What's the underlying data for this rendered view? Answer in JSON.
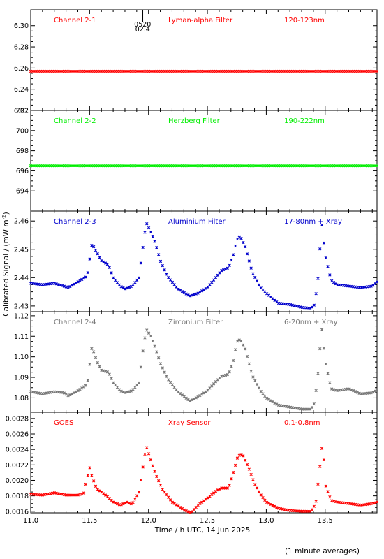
{
  "chart_data": [
    {
      "type": "scatter",
      "panel_labels": [
        "Channel 2-1",
        "Lyman-alpha Filter",
        "120-123nm"
      ],
      "color": "#ff0000",
      "ylim": [
        6.22,
        6.315
      ],
      "yticks": [
        6.22,
        6.24,
        6.26,
        6.28,
        6.3
      ],
      "ytick_labels": [
        "6.22",
        "6.24",
        "6.26",
        "6.28",
        "6.30"
      ],
      "annotation": {
        "x": 11.95,
        "line1": "0520",
        "line2": "02.4"
      },
      "series": [
        {
          "x": [
            11.0,
            13.94
          ],
          "y": [
            6.257,
            6.257
          ]
        }
      ]
    },
    {
      "type": "scatter",
      "panel_labels": [
        "Channel 2-2",
        "Herzberg Filter",
        "190-222nm"
      ],
      "color": "#00ee00",
      "ylim": [
        692.0,
        702.0
      ],
      "yticks": [
        694,
        696,
        698,
        700,
        702
      ],
      "ytick_labels": [
        "694",
        "696",
        "698",
        "700",
        "702"
      ],
      "series": [
        {
          "x": [
            11.0,
            13.94
          ],
          "y": [
            696.5,
            696.5
          ]
        }
      ]
    },
    {
      "type": "scatter",
      "panel_labels": [
        "Channel 2-3",
        "Aluminium Filter",
        "17-80nm + Xray"
      ],
      "color": "#0000cc",
      "ylim": [
        2.428,
        2.4635
      ],
      "yticks": [
        2.43,
        2.44,
        2.45,
        2.46
      ],
      "ytick_labels": [
        "2.43",
        "2.44",
        "2.45",
        "2.46"
      ],
      "series": [
        {
          "x": [
            11.0,
            11.1,
            11.2,
            11.28,
            11.32,
            11.4,
            11.48,
            11.52,
            11.56,
            11.6,
            11.66,
            11.7,
            11.76,
            11.8,
            11.86,
            11.92,
            11.95,
            11.98,
            12.02,
            12.06,
            12.1,
            12.16,
            12.25,
            12.35,
            12.42,
            12.5,
            12.58,
            12.62,
            12.68,
            12.72,
            12.75,
            12.78,
            12.82,
            12.88,
            12.95,
            13.0,
            13.1,
            13.2,
            13.3,
            13.38,
            13.41,
            13.44,
            13.47,
            13.5,
            13.55,
            13.6,
            13.7,
            13.8,
            13.9,
            13.94
          ],
          "y": [
            2.438,
            2.4375,
            2.438,
            2.437,
            2.4365,
            2.4385,
            2.4405,
            2.452,
            2.449,
            2.446,
            2.4445,
            2.44,
            2.437,
            2.436,
            2.437,
            2.44,
            2.45,
            2.4595,
            2.456,
            2.452,
            2.446,
            2.4405,
            2.436,
            2.4335,
            2.4345,
            2.4365,
            2.4405,
            2.4425,
            2.4435,
            2.448,
            2.4535,
            2.4545,
            2.451,
            2.442,
            2.4365,
            2.4345,
            2.431,
            2.4305,
            2.4295,
            2.4292,
            2.4305,
            2.44,
            2.4595,
            2.448,
            2.439,
            2.4375,
            2.437,
            2.4365,
            2.437,
            2.4385
          ]
        }
      ]
    },
    {
      "type": "scatter",
      "panel_labels": [
        "Channel 2-4",
        "Zirconium Filter",
        "6-20nm + Xray"
      ],
      "color": "#777777",
      "ylim": [
        1.073,
        1.122
      ],
      "yticks": [
        1.08,
        1.09,
        1.1,
        1.11,
        1.12
      ],
      "ytick_labels": [
        "1.08",
        "1.09",
        "1.10",
        "1.11",
        "1.12"
      ],
      "series": [
        {
          "x": [
            11.0,
            11.1,
            11.2,
            11.28,
            11.32,
            11.4,
            11.48,
            11.52,
            11.56,
            11.6,
            11.66,
            11.7,
            11.76,
            11.8,
            11.86,
            11.92,
            11.95,
            11.98,
            12.02,
            12.06,
            12.1,
            12.16,
            12.25,
            12.35,
            12.42,
            12.5,
            12.58,
            12.62,
            12.68,
            12.72,
            12.75,
            12.78,
            12.82,
            12.88,
            12.95,
            13.0,
            13.1,
            13.2,
            13.3,
            13.38,
            13.41,
            13.44,
            13.47,
            13.5,
            13.55,
            13.6,
            13.7,
            13.8,
            13.9,
            13.94
          ],
          "y": [
            1.083,
            1.082,
            1.083,
            1.0825,
            1.081,
            1.0835,
            1.0865,
            1.105,
            1.098,
            1.0935,
            1.0925,
            1.0875,
            1.0835,
            1.0825,
            1.0835,
            1.0875,
            1.102,
            1.1135,
            1.11,
            1.104,
            1.097,
            1.0895,
            1.083,
            1.0785,
            1.0805,
            1.0835,
            1.0885,
            1.0905,
            1.0915,
            1.098,
            1.1075,
            1.1085,
            1.104,
            1.091,
            1.0835,
            1.08,
            1.0765,
            1.0755,
            1.0745,
            1.0745,
            1.0775,
            1.0925,
            1.1145,
            1.098,
            1.0845,
            1.0835,
            1.0845,
            1.082,
            1.0825,
            1.084
          ]
        }
      ]
    },
    {
      "type": "scatter",
      "panel_labels": [
        "GOES",
        "Xray Sensor",
        "0.1-0.8nm"
      ],
      "color": "#ff0000",
      "ylim": [
        0.00158,
        0.00288
      ],
      "yticks": [
        0.0016,
        0.0018,
        0.002,
        0.0022,
        0.0024,
        0.0026,
        0.0028
      ],
      "ytick_labels": [
        "0.0016",
        "0.0018",
        "0.0020",
        "0.0022",
        "0.0024",
        "0.0026",
        "0.0028"
      ],
      "series": [
        {
          "x": [
            11.0,
            11.1,
            11.2,
            11.3,
            11.4,
            11.45,
            11.5,
            11.52,
            11.56,
            11.6,
            11.66,
            11.7,
            11.76,
            11.82,
            11.86,
            11.92,
            11.95,
            11.98,
            12.02,
            12.06,
            12.12,
            12.2,
            12.3,
            12.36,
            12.42,
            12.5,
            12.58,
            12.62,
            12.68,
            12.72,
            12.76,
            12.8,
            12.85,
            12.9,
            12.95,
            13.0,
            13.1,
            13.2,
            13.3,
            13.38,
            13.42,
            13.45,
            13.48,
            13.5,
            13.55,
            13.6,
            13.7,
            13.8,
            13.9,
            13.94
          ],
          "y": [
            0.00182,
            0.00181,
            0.00184,
            0.00181,
            0.00181,
            0.00183,
            0.00217,
            0.00205,
            0.00189,
            0.00185,
            0.00178,
            0.00172,
            0.00168,
            0.00172,
            0.00169,
            0.00185,
            0.00215,
            0.00245,
            0.00226,
            0.00208,
            0.00188,
            0.00172,
            0.00162,
            0.00158,
            0.00168,
            0.00177,
            0.00187,
            0.0019,
            0.0019,
            0.0021,
            0.00232,
            0.00233,
            0.00216,
            0.00196,
            0.00182,
            0.00172,
            0.00164,
            0.00161,
            0.0016,
            0.0016,
            0.0017,
            0.0021,
            0.00252,
            0.00195,
            0.00174,
            0.00172,
            0.0017,
            0.00168,
            0.0017,
            0.00172
          ]
        }
      ]
    }
  ],
  "x_axis": {
    "xlim": [
      11.0,
      13.94
    ],
    "ticks": [
      11.0,
      11.5,
      12.0,
      12.5,
      13.0,
      13.5
    ],
    "tick_labels": [
      "11.0",
      "11.5",
      "12.0",
      "12.5",
      "13.0",
      "13.5"
    ],
    "label": "Time / h UTC, 14 Jun 2025"
  },
  "y_axis_label": "Calibrated Signal / (mW m",
  "y_axis_label_sup": "-2",
  "y_axis_label_end": ")",
  "footnote": "(1 minute averages)"
}
